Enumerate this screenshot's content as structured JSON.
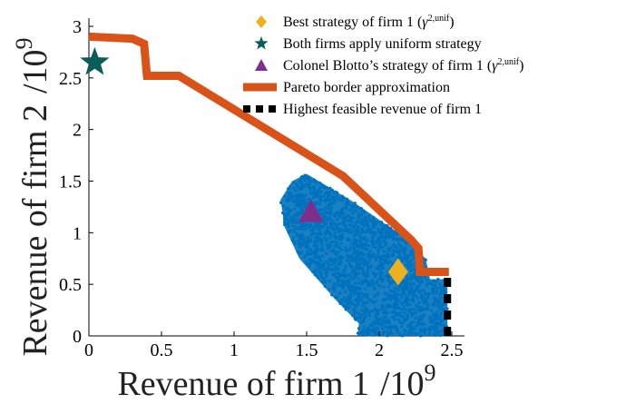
{
  "chart_data": {
    "type": "scatter",
    "title": "",
    "xlabel": "Revenue of firm 1",
    "xlabel_exp": "/10",
    "xlabel_sup": "9",
    "ylabel": "Revenue of firm 2",
    "ylabel_exp": "/10",
    "ylabel_sup": "9",
    "xlim": [
      0,
      2.5
    ],
    "ylim": [
      0,
      3
    ],
    "x_ticks": [
      0,
      0.5,
      1,
      1.5,
      2,
      2.5
    ],
    "x_tick_labels": [
      "0",
      "0.5",
      "1",
      "1.5",
      "2",
      "2.5"
    ],
    "y_ticks": [
      0,
      0.5,
      1,
      1.5,
      2,
      2.5,
      3
    ],
    "y_tick_labels": [
      "0",
      "0.5",
      "1",
      "1.5",
      "2",
      "2.5",
      "3"
    ],
    "grid": false,
    "legend_position": "top-right",
    "colors": {
      "cloud": "#0072BD",
      "pareto": "#D95319",
      "best": "#EDB120",
      "uniform": "#0B5E57",
      "blotto": "#7E2F8E",
      "feasible": "#000000"
    },
    "series": [
      {
        "name": "Pareto border approximation",
        "kind": "line",
        "x": [
          0,
          0.3,
          0.38,
          0.4,
          0.62,
          1.75,
          2.22,
          2.27,
          2.28,
          2.48
        ],
        "y": [
          2.9,
          2.88,
          2.83,
          2.52,
          2.52,
          1.55,
          0.93,
          0.85,
          0.62,
          0.62
        ]
      },
      {
        "name": "Highest feasible revenue of firm 1",
        "kind": "dashed-line",
        "x": [
          2.47,
          2.47
        ],
        "y": [
          0,
          0.6
        ]
      },
      {
        "name": "Best strategy of firm 1",
        "name_sup": "2,unif",
        "kind": "marker",
        "marker": "diamond",
        "x": [
          2.13
        ],
        "y": [
          0.62
        ]
      },
      {
        "name": "Both firms apply uniform strategy",
        "kind": "marker",
        "marker": "star",
        "x": [
          0.04
        ],
        "y": [
          2.65
        ]
      },
      {
        "name": "Colonel Blotto's strategy of firm 1",
        "name_sup": "2,unif",
        "kind": "marker",
        "marker": "triangle",
        "x": [
          1.53
        ],
        "y": [
          1.2
        ]
      }
    ],
    "scatter_cloud": {
      "polygon": [
        [
          1.5,
          1.57
        ],
        [
          1.82,
          1.3
        ],
        [
          2.15,
          0.98
        ],
        [
          2.32,
          0.75
        ],
        [
          2.35,
          0.55
        ],
        [
          2.47,
          0.55
        ],
        [
          2.47,
          0.0
        ],
        [
          1.85,
          0.0
        ],
        [
          1.86,
          0.12
        ],
        [
          1.7,
          0.35
        ],
        [
          1.45,
          0.75
        ],
        [
          1.35,
          1.05
        ],
        [
          1.32,
          1.32
        ],
        [
          1.4,
          1.5
        ]
      ],
      "count": 6000
    },
    "legend": [
      {
        "marker": "diamond",
        "color_key": "best",
        "label": "Best strategy of firm 1 (",
        "gamma": "γ",
        "sup": "2,unif",
        "close": ")"
      },
      {
        "marker": "star",
        "color_key": "uniform",
        "label": "Both firms apply uniform strategy"
      },
      {
        "marker": "triangle",
        "color_key": "blotto",
        "label": "Colonel Blotto’s strategy of firm 1 (",
        "gamma": "γ",
        "sup": "2,unif",
        "close": ")"
      },
      {
        "marker": "thick-line",
        "color_key": "pareto",
        "label": "Pareto border approximation"
      },
      {
        "marker": "dashed",
        "color_key": "feasible",
        "label": "Highest feasible revenue of firm 1"
      }
    ]
  }
}
